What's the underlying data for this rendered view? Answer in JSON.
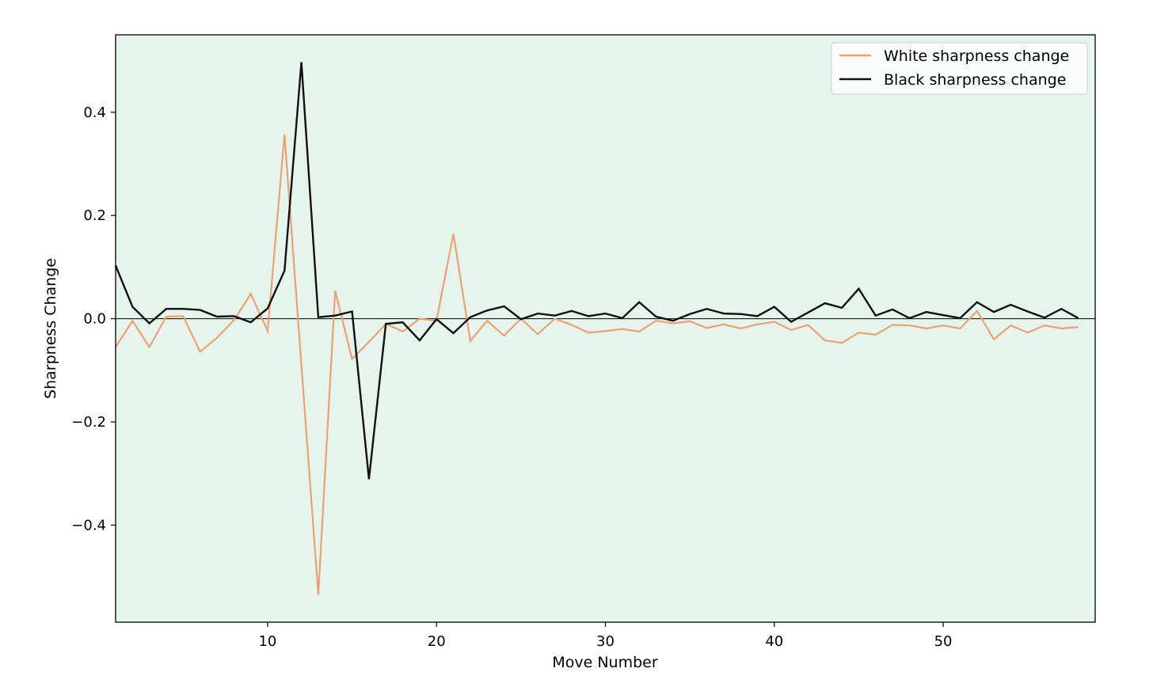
{
  "chart_data": {
    "type": "line",
    "title": "",
    "xlabel": "Move Number",
    "ylabel": "Sharpness Change",
    "xlim": [
      1,
      59
    ],
    "ylim": [
      -0.588,
      0.55
    ],
    "xticks": [
      10,
      20,
      30,
      40,
      50
    ],
    "yticks": [
      -0.4,
      -0.2,
      0.0,
      0.2,
      0.4
    ],
    "ytick_labels": [
      "−0.4",
      "−0.2",
      "0.0",
      "0.2",
      "0.4"
    ],
    "grid": false,
    "baseline_y": 0,
    "legend_position": "top-right",
    "background_color": "#e5f5ee",
    "x": [
      1,
      2,
      3,
      4,
      5,
      6,
      7,
      8,
      9,
      10,
      11,
      12,
      13,
      14,
      15,
      16,
      17,
      18,
      19,
      20,
      21,
      22,
      23,
      24,
      25,
      26,
      27,
      28,
      29,
      30,
      31,
      32,
      33,
      34,
      35,
      36,
      37,
      38,
      39,
      40,
      41,
      42,
      43,
      44,
      45,
      46,
      47,
      48,
      49,
      50,
      51,
      52,
      53,
      54,
      55,
      56,
      57,
      58
    ],
    "series": [
      {
        "name": "White sharpness change",
        "color": "#f0a070",
        "values": [
          -0.055,
          -0.004,
          -0.055,
          0.004,
          0.005,
          -0.064,
          -0.037,
          -0.003,
          0.048,
          -0.024,
          0.357,
          -0.09,
          -0.535,
          0.054,
          -0.078,
          -0.045,
          -0.01,
          -0.025,
          0.0,
          -0.004,
          0.165,
          -0.043,
          -0.004,
          -0.033,
          0.0,
          -0.03,
          0.0,
          -0.012,
          -0.027,
          -0.024,
          -0.02,
          -0.025,
          -0.004,
          -0.009,
          -0.005,
          -0.018,
          -0.011,
          -0.019,
          -0.011,
          -0.006,
          -0.022,
          -0.012,
          -0.042,
          -0.047,
          -0.027,
          -0.031,
          -0.012,
          -0.013,
          -0.019,
          -0.013,
          -0.019,
          0.015,
          -0.04,
          -0.013,
          -0.027,
          -0.013,
          -0.019,
          -0.016
        ]
      },
      {
        "name": "Black sharpness change",
        "color": "#111111",
        "values": [
          0.103,
          0.023,
          -0.009,
          0.019,
          0.019,
          0.017,
          0.004,
          0.005,
          -0.007,
          0.02,
          0.093,
          0.497,
          0.003,
          0.006,
          0.014,
          -0.311,
          -0.01,
          -0.007,
          -0.042,
          -0.001,
          -0.028,
          0.003,
          0.016,
          0.024,
          -0.001,
          0.01,
          0.006,
          0.015,
          0.005,
          0.01,
          0.001,
          0.032,
          0.004,
          -0.004,
          0.009,
          0.019,
          0.01,
          0.009,
          0.005,
          0.023,
          -0.006,
          0.012,
          0.03,
          0.021,
          0.058,
          0.006,
          0.018,
          0.001,
          0.013,
          0.007,
          0.001,
          0.032,
          0.013,
          0.027,
          0.014,
          0.002,
          0.019,
          0.001
        ]
      }
    ]
  }
}
